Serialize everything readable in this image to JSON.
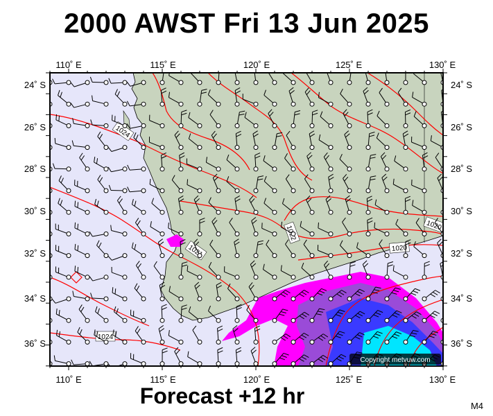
{
  "title": "2000 AWST Fri 13 Jun 2025",
  "subtitle": "Forecast +12 hr",
  "model_label": "M4",
  "copyright": "Copyright metvuw.com",
  "axes": {
    "lon_labels": [
      "110˚ E",
      "115˚ E",
      "120˚ E",
      "125˚ E",
      "130˚ E"
    ],
    "lat_labels": [
      "24˚ S",
      "26˚ S",
      "28˚ S",
      "30˚ S",
      "32˚ S",
      "34˚ S",
      "36˚ S"
    ]
  },
  "isobar_labels": [
    "1024",
    "1021",
    "1022",
    "1020",
    "1020",
    "1024"
  ],
  "colors": {
    "sea": "#e6e6fa",
    "land": "#c8d4be",
    "isobar": "#ff0000",
    "rain_light": "#ff00ff",
    "rain_heavy": "#3a3aff",
    "rain_core": "#00e5ff"
  }
}
